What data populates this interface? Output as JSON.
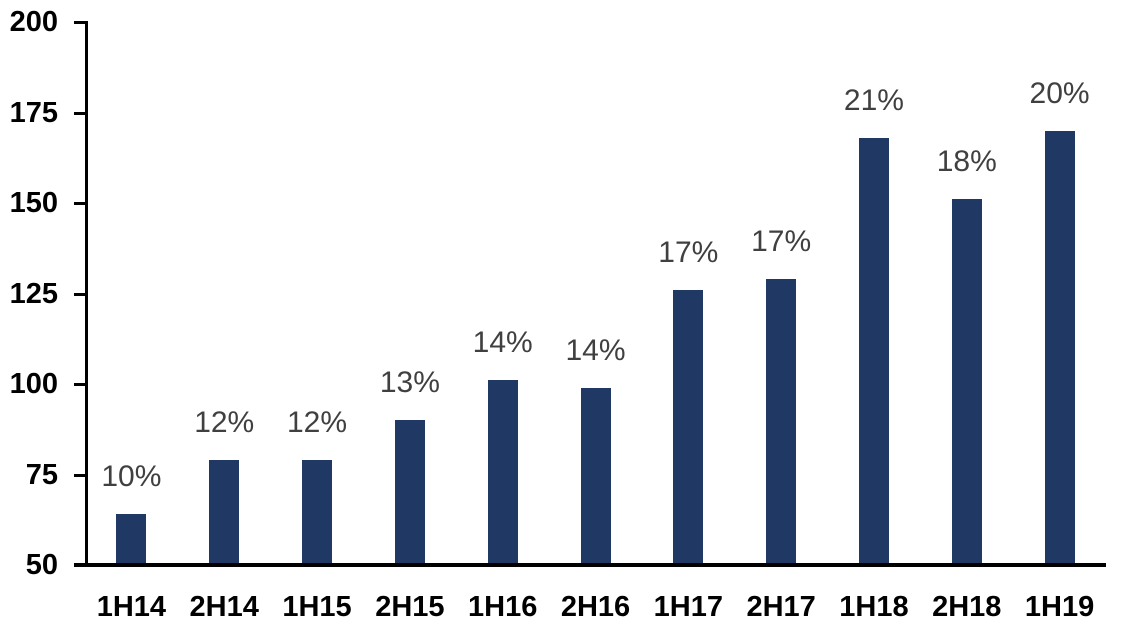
{
  "chart_data": {
    "type": "bar",
    "title": "",
    "xlabel": "",
    "ylabel": "",
    "categories": [
      "1H14",
      "2H14",
      "1H15",
      "2H15",
      "1H16",
      "2H16",
      "1H17",
      "2H17",
      "1H18",
      "2H18",
      "1H19"
    ],
    "values": [
      64,
      79,
      79,
      90,
      101,
      99,
      126,
      129,
      168,
      151,
      170
    ],
    "bar_labels": [
      "10%",
      "12%",
      "12%",
      "13%",
      "14%",
      "14%",
      "17%",
      "17%",
      "21%",
      "18%",
      "20%"
    ],
    "ylim": [
      50,
      200
    ],
    "yticks": [
      50,
      75,
      100,
      125,
      150,
      175,
      200
    ],
    "grid": false,
    "legend": false,
    "bar_color": "#1F3864",
    "label_color": "#404040",
    "axis_color": "#000000",
    "background_color": "#FFFFFF"
  }
}
